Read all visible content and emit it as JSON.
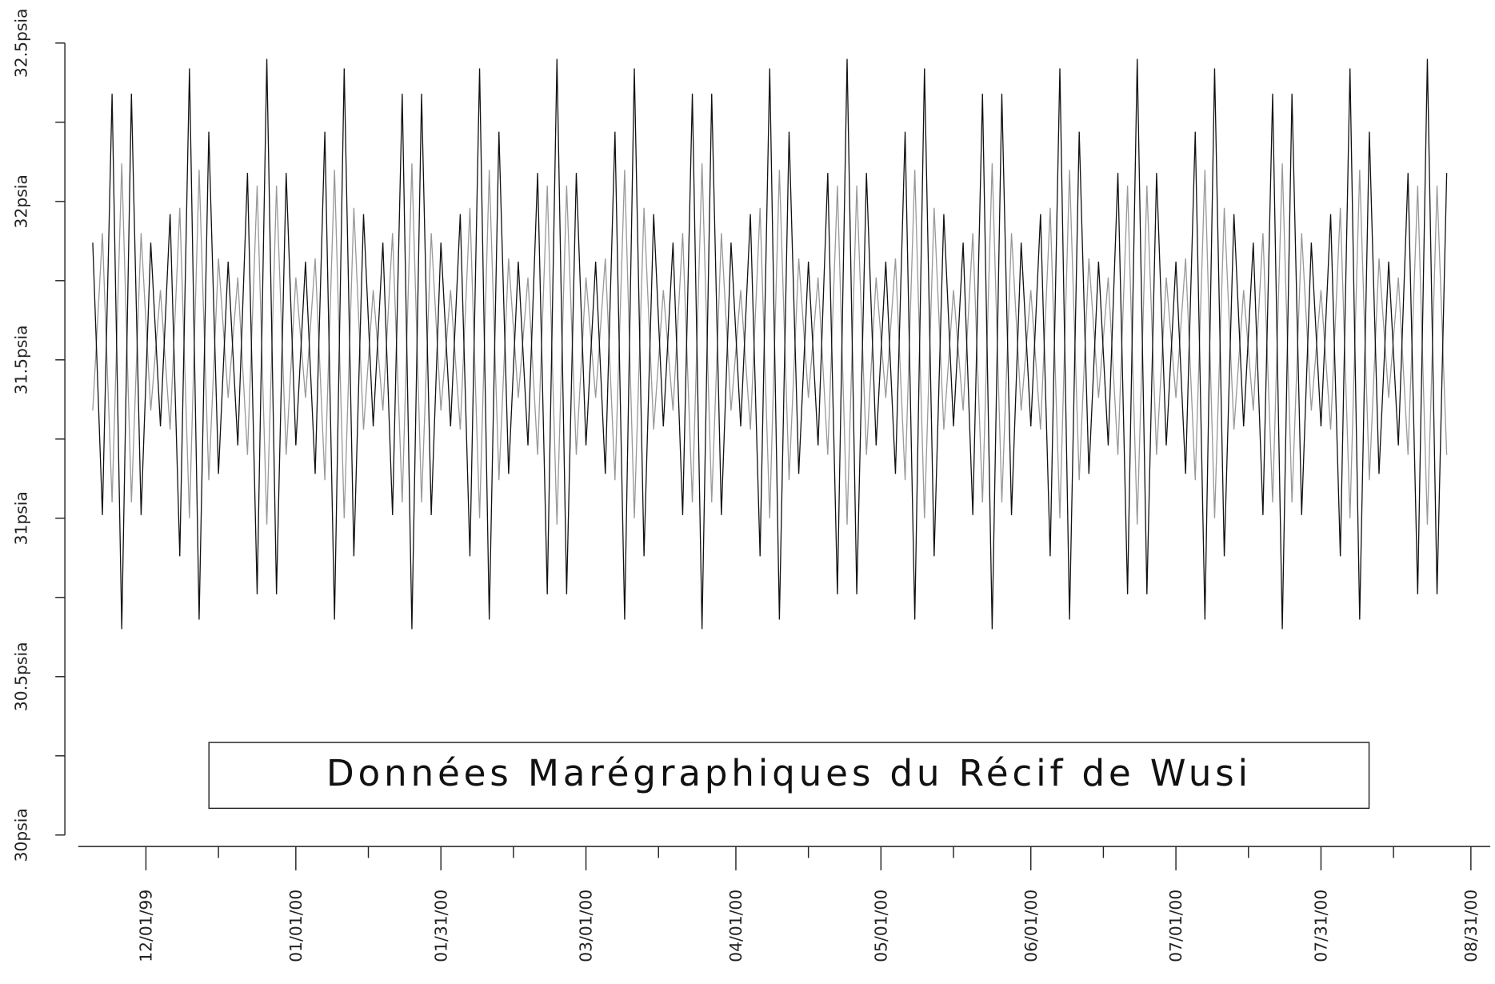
{
  "chart_data": {
    "type": "line",
    "title": "Données Marégraphiques du Récif de Wusi",
    "x": [
      "11/20/99",
      "11/22/99",
      "11/24/99",
      "11/26/99",
      "11/28/99",
      "11/30/99",
      "12/02/99",
      "12/04/99",
      "12/06/99",
      "12/08/99",
      "12/10/99",
      "12/12/99",
      "12/14/99",
      "12/16/99",
      "12/18/99",
      "12/20/99",
      "12/22/99",
      "12/24/99",
      "12/26/99",
      "12/28/99",
      "12/30/99",
      "01/01/00",
      "01/03/00",
      "01/05/00",
      "01/07/00",
      "01/09/00",
      "01/11/00",
      "01/13/00",
      "01/15/00",
      "01/17/00",
      "01/19/00",
      "01/21/00",
      "01/23/00",
      "01/25/00",
      "01/27/00",
      "01/29/00",
      "01/31/00",
      "02/02/00",
      "02/04/00",
      "02/06/00",
      "02/08/00",
      "02/10/00",
      "02/12/00",
      "02/14/00",
      "02/16/00",
      "02/18/00",
      "02/20/00",
      "02/22/00",
      "02/24/00",
      "02/26/00",
      "02/28/00",
      "03/01/00",
      "03/03/00",
      "03/05/00",
      "03/07/00",
      "03/09/00",
      "03/11/00",
      "03/13/00",
      "03/15/00",
      "03/17/00",
      "03/19/00",
      "03/21/00",
      "03/23/00",
      "03/25/00",
      "03/27/00",
      "03/29/00",
      "03/31/00",
      "04/02/00",
      "04/04/00",
      "04/06/00",
      "04/08/00",
      "04/10/00",
      "04/12/00",
      "04/14/00",
      "04/16/00",
      "04/18/00",
      "04/20/00",
      "04/22/00",
      "04/24/00",
      "04/26/00",
      "04/28/00",
      "04/30/00",
      "05/02/00",
      "05/04/00",
      "05/06/00",
      "05/08/00",
      "05/10/00",
      "05/12/00",
      "05/14/00",
      "05/16/00",
      "05/18/00",
      "05/20/00",
      "05/22/00",
      "05/24/00",
      "05/26/00",
      "05/28/00",
      "05/30/00",
      "06/01/00",
      "06/03/00",
      "06/05/00",
      "06/07/00",
      "06/09/00",
      "06/11/00",
      "06/13/00",
      "06/15/00",
      "06/17/00",
      "06/19/00",
      "06/21/00",
      "06/23/00",
      "06/25/00",
      "06/27/00",
      "06/29/00",
      "07/01/00",
      "07/03/00",
      "07/05/00",
      "07/07/00",
      "07/09/00",
      "07/11/00",
      "07/13/00",
      "07/15/00",
      "07/17/00",
      "07/19/00",
      "07/21/00",
      "07/23/00",
      "07/25/00",
      "07/27/00",
      "07/29/00",
      "07/31/00",
      "08/02/00",
      "08/04/00",
      "08/06/00",
      "08/08/00",
      "08/10/00",
      "08/12/00",
      "08/14/00",
      "08/16/00",
      "08/18/00",
      "08/20/00",
      "08/22/00",
      "08/24/00",
      "08/26/00"
    ],
    "series": [
      {
        "color": "#999999",
        "values": [
          31.34,
          31.9,
          31.05,
          32.12,
          31.05,
          31.9,
          31.34,
          31.72,
          31.28,
          31.98,
          31.0,
          32.1,
          31.12,
          31.82,
          31.38,
          31.76,
          31.2,
          32.05,
          30.98,
          32.05,
          31.2,
          31.76,
          31.38,
          31.82,
          31.12,
          32.1,
          31.0,
          31.98,
          31.28,
          31.72,
          31.34,
          31.9,
          31.05,
          32.12,
          31.05,
          31.9,
          31.34,
          31.72,
          31.28,
          31.98,
          31.0,
          32.1,
          31.12,
          31.82,
          31.38,
          31.76,
          31.2,
          32.05,
          30.98,
          32.05,
          31.2,
          31.76,
          31.38,
          31.82,
          31.12,
          32.1,
          31.0,
          31.98,
          31.28,
          31.72,
          31.34,
          31.9,
          31.05,
          32.12,
          31.05,
          31.9,
          31.34,
          31.72,
          31.28,
          31.98,
          31.0,
          32.1,
          31.12,
          31.82,
          31.38,
          31.76,
          31.2,
          32.05,
          30.98,
          32.05,
          31.2,
          31.76,
          31.38,
          31.82,
          31.12,
          32.1,
          31.0,
          31.98,
          31.28,
          31.72,
          31.34,
          31.9,
          31.05,
          32.12,
          31.05,
          31.9,
          31.34,
          31.72,
          31.28,
          31.98,
          31.0,
          32.1,
          31.12,
          31.82,
          31.38,
          31.76,
          31.2,
          32.05,
          30.98,
          32.05,
          31.2,
          31.76,
          31.38,
          31.82,
          31.12,
          32.1,
          31.0,
          31.98,
          31.28,
          31.72,
          31.34,
          31.9,
          31.05,
          32.12,
          31.05,
          31.9,
          31.34,
          31.72,
          31.28,
          31.98,
          31.0,
          32.1,
          31.12,
          31.82,
          31.38,
          31.76,
          31.2,
          32.05,
          30.98,
          32.05,
          31.2
        ]
      },
      {
        "color": "#111111",
        "values": [
          31.87,
          31.01,
          32.34,
          30.65,
          32.34,
          31.01,
          31.87,
          31.29,
          31.96,
          30.88,
          32.42,
          30.68,
          32.22,
          31.14,
          31.81,
          31.23,
          32.09,
          30.76,
          32.45,
          30.76,
          32.09,
          31.23,
          31.81,
          31.14,
          32.22,
          30.68,
          32.42,
          30.88,
          31.96,
          31.29,
          31.87,
          31.01,
          32.34,
          30.65,
          32.34,
          31.01,
          31.87,
          31.29,
          31.96,
          30.88,
          32.42,
          30.68,
          32.22,
          31.14,
          31.81,
          31.23,
          32.09,
          30.76,
          32.45,
          30.76,
          32.09,
          31.23,
          31.81,
          31.14,
          32.22,
          30.68,
          32.42,
          30.88,
          31.96,
          31.29,
          31.87,
          31.01,
          32.34,
          30.65,
          32.34,
          31.01,
          31.87,
          31.29,
          31.96,
          30.88,
          32.42,
          30.68,
          32.22,
          31.14,
          31.81,
          31.23,
          32.09,
          30.76,
          32.45,
          30.76,
          32.09,
          31.23,
          31.81,
          31.14,
          32.22,
          30.68,
          32.42,
          30.88,
          31.96,
          31.29,
          31.87,
          31.01,
          32.34,
          30.65,
          32.34,
          31.01,
          31.87,
          31.29,
          31.96,
          30.88,
          32.42,
          30.68,
          32.22,
          31.14,
          31.81,
          31.23,
          32.09,
          30.76,
          32.45,
          30.76,
          32.09,
          31.23,
          31.81,
          31.14,
          32.22,
          30.68,
          32.42,
          30.88,
          31.96,
          31.29,
          31.87,
          31.01,
          32.34,
          30.65,
          32.34,
          31.01,
          31.87,
          31.29,
          31.96,
          30.88,
          32.42,
          30.68,
          32.22,
          31.14,
          31.81,
          31.23,
          32.09,
          30.76,
          32.45,
          30.76,
          32.09
        ]
      }
    ],
    "xlim": [
      "11/17/99",
      "09/04/00"
    ],
    "xticks": [
      "12/01/99",
      "01/01/00",
      "01/31/00",
      "03/01/00",
      "04/01/00",
      "05/01/00",
      "06/01/00",
      "07/01/00",
      "07/31/00",
      "08/31/00"
    ],
    "xminorticks": [
      "12/16/99",
      "01/16/00",
      "02/15/00",
      "03/16/00",
      "04/16/00",
      "05/16/00",
      "06/16/00",
      "07/16/00",
      "08/15/00"
    ],
    "ylim": [
      30,
      32.5
    ],
    "yticks": [
      {
        "value": 30,
        "label": "30psia"
      },
      {
        "value": 30.5,
        "label": "30.5psia"
      },
      {
        "value": 31,
        "label": "31psia"
      },
      {
        "value": 31.5,
        "label": "31.5psia"
      },
      {
        "value": 32,
        "label": "32psia"
      },
      {
        "value": 32.5,
        "label": "32.5psia"
      }
    ],
    "yminorticks": [
      30.25,
      30.75,
      31.25,
      31.75,
      32.25
    ]
  }
}
